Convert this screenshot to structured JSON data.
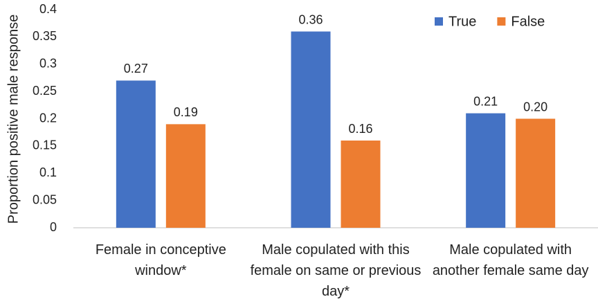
{
  "chart_data": {
    "type": "bar",
    "y_label": "Proportion positive male response",
    "categories": [
      "Female in conceptive window*",
      "Male copulated with this female on same or previous day*",
      "Male copulated with another female same day"
    ],
    "series": [
      {
        "name": "True",
        "color": "#4472c4",
        "values": [
          0.27,
          0.36,
          0.21
        ],
        "value_labels": [
          "0.27",
          "0.36",
          "0.21"
        ]
      },
      {
        "name": "False",
        "color": "#ed7d31",
        "values": [
          0.19,
          0.16,
          0.2
        ],
        "value_labels": [
          "0.19",
          "0.16",
          "0.20"
        ]
      }
    ],
    "ylim": [
      0,
      0.4
    ],
    "yticks": [
      0,
      0.05,
      0.1,
      0.15,
      0.2,
      0.25,
      0.3,
      0.35,
      0.4
    ],
    "grid": false,
    "legend": "top-right"
  }
}
